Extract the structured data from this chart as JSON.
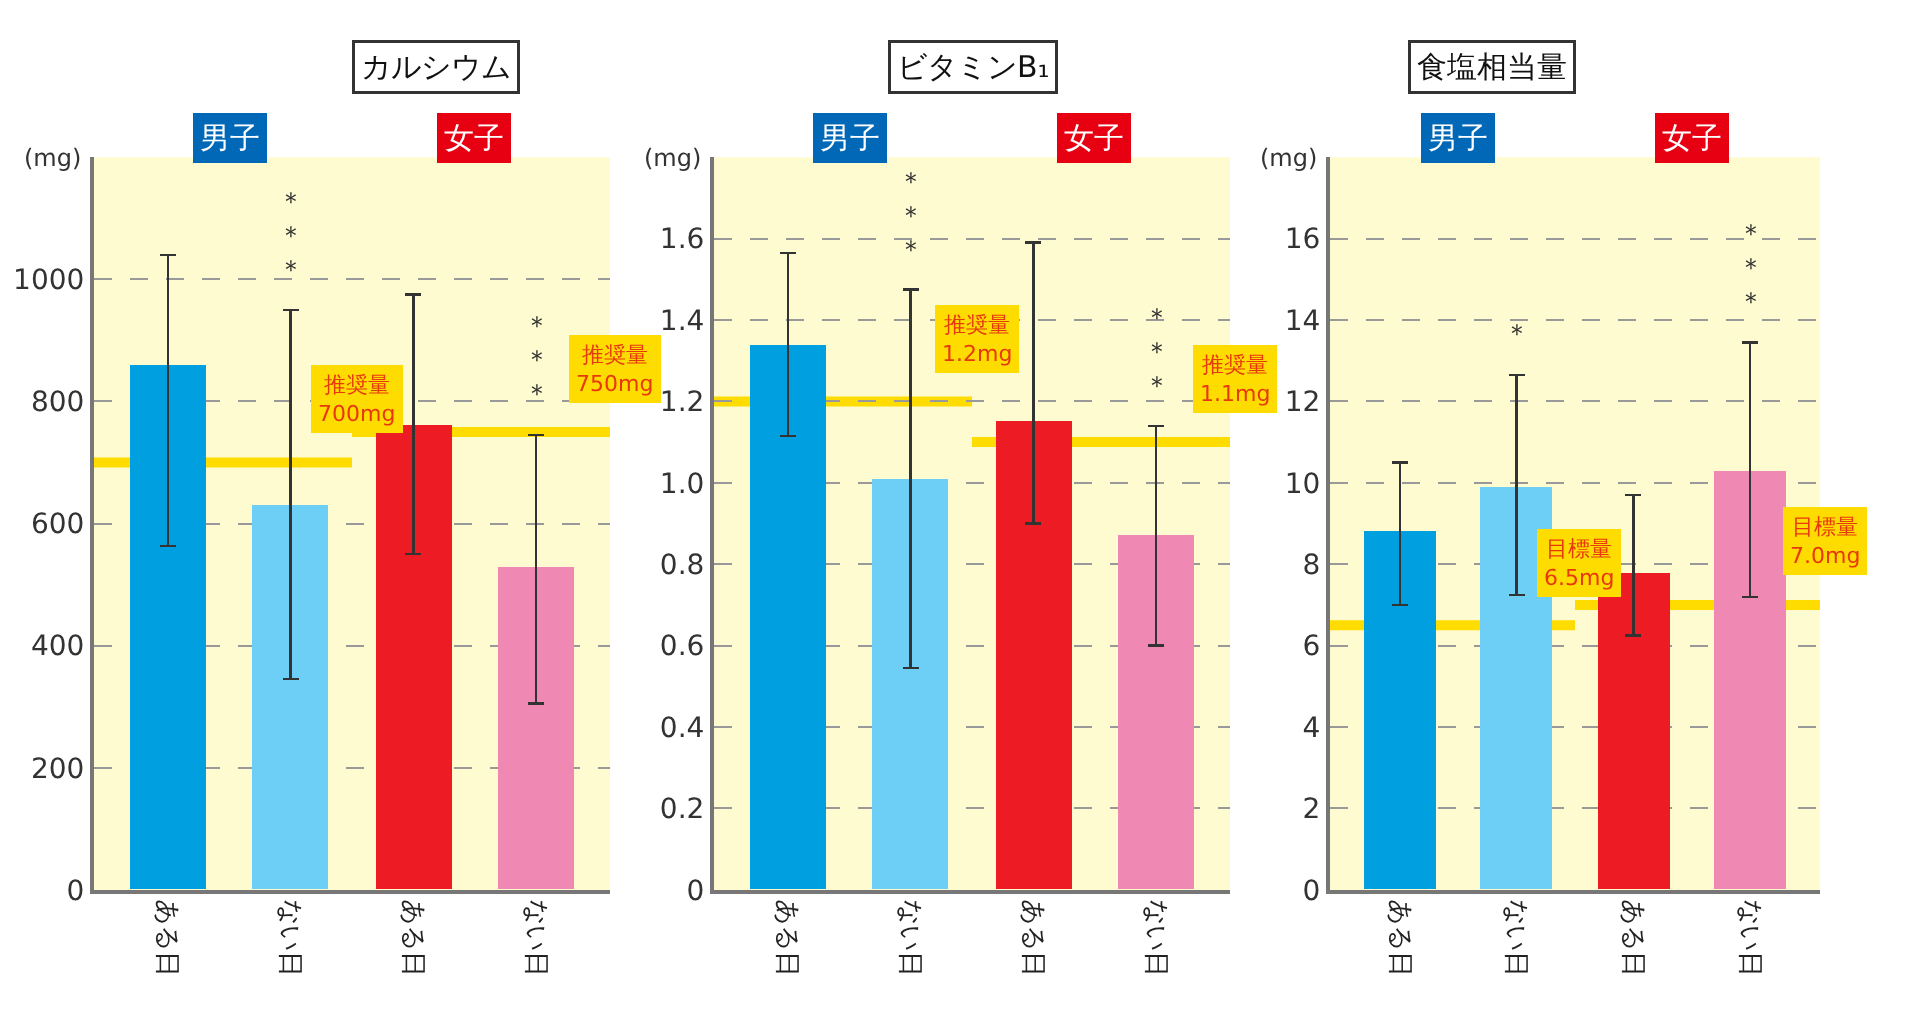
{
  "chart_data": [
    {
      "type": "bar",
      "title": "カルシウム",
      "ylabel": "(mg)",
      "categories": [
        "ある日",
        "ない日",
        "ある日",
        "ない日"
      ],
      "values": [
        860,
        630,
        760,
        530
      ],
      "colors": [
        "#009fe0",
        "#6dcff6",
        "#ed1c24",
        "#f088b4"
      ],
      "errors": [
        [
          563,
          1040
        ],
        [
          345,
          950
        ],
        [
          550,
          975
        ],
        [
          305,
          745
        ]
      ],
      "ylim": [
        0,
        1200
      ],
      "yticks": [
        0,
        200,
        400,
        600,
        800,
        1000,
        {
          "value": 1200,
          "label": null
        }
      ],
      "grid": "y",
      "ref_lines": [
        {
          "axis": "y",
          "value": 700,
          "label": "推奨量\n700mg",
          "color": "#ffdc00"
        },
        {
          "axis": "y",
          "value": 750,
          "label": "推奨量\n750mg",
          "color": "#ffdc00"
        }
      ],
      "annotations": [
        "男子",
        "女子",
        "＊＊＊",
        "＊＊＊"
      ]
    },
    {
      "type": "bar",
      "title": "ビタミンB₁",
      "ylabel": "(mg)",
      "categories": [
        "ある日",
        "ない日",
        "ある日",
        "ない日"
      ],
      "values": [
        1.34,
        1.01,
        1.15,
        0.87
      ],
      "colors": [
        "#009fe0",
        "#6dcff6",
        "#ed1c24",
        "#f088b4"
      ],
      "errors": [
        [
          1.115,
          1.565
        ],
        [
          0.545,
          1.475
        ],
        [
          0.9,
          1.59
        ],
        [
          0.6,
          1.14
        ]
      ],
      "ylim": [
        0,
        1.8
      ],
      "yticks": [
        0,
        0.2,
        0.4,
        0.6,
        0.8,
        {
          "value": 1.0,
          "label": "1.0"
        },
        1.2,
        1.4,
        1.6,
        {
          "value": 1.8,
          "label": null
        }
      ],
      "grid": "y",
      "ref_lines": [
        {
          "axis": "y",
          "value": 1.2,
          "label": "推奨量\n1.2mg",
          "color": "#ffdc00"
        },
        {
          "axis": "y",
          "value": 1.1,
          "label": "推奨量\n1.1mg",
          "color": "#ffdc00"
        }
      ],
      "annotations": [
        "男子",
        "女子",
        "＊＊＊",
        "＊＊＊"
      ]
    },
    {
      "type": "bar",
      "title": "食塩相当量",
      "ylabel": "(mg)",
      "categories": [
        "ある日",
        "ない日",
        "ある日",
        "ない日"
      ],
      "values": [
        8.8,
        9.9,
        7.8,
        10.3
      ],
      "colors": [
        "#009fe0",
        "#6dcff6",
        "#ed1c24",
        "#f088b4"
      ],
      "errors": [
        [
          7.0,
          10.5
        ],
        [
          7.25,
          12.65
        ],
        [
          6.25,
          9.7
        ],
        [
          7.2,
          13.45
        ]
      ],
      "ylim": [
        0,
        18
      ],
      "yticks": [
        0,
        2,
        4,
        6,
        8,
        10,
        12,
        14,
        16,
        {
          "value": 18,
          "label": null
        }
      ],
      "grid": "y",
      "ref_lines": [
        {
          "axis": "y",
          "value": 6.5,
          "label": "目標量\n6.5mg",
          "color": "#ffdc00"
        },
        {
          "axis": "y",
          "value": 7.0,
          "label": "目標量\n7.0mg",
          "color": "#ffdc00"
        }
      ],
      "annotations": [
        "男子",
        "女子",
        "＊",
        "＊＊＊"
      ]
    }
  ]
}
